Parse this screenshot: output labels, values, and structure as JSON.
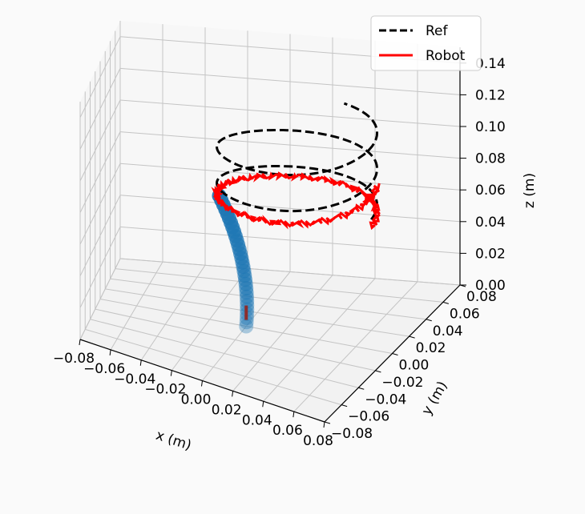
{
  "chart_data": {
    "type": "line",
    "xlabel": "x (m)",
    "ylabel": "y (m)",
    "zlabel": "z (m)",
    "xlim": [
      -0.08,
      0.08
    ],
    "ylim": [
      -0.08,
      0.08
    ],
    "zlim": [
      0.0,
      0.15
    ],
    "x_ticks": [
      "−0.08",
      "−0.06",
      "−0.04",
      "−0.02",
      "0.00",
      "0.02",
      "0.04",
      "0.06",
      "0.08"
    ],
    "y_ticks": [
      "−0.08",
      "−0.06",
      "−0.04",
      "−0.02",
      "0.00",
      "0.02",
      "0.04",
      "0.06",
      "0.08"
    ],
    "z_ticks": [
      "0.00",
      "0.02",
      "0.04",
      "0.06",
      "0.08",
      "0.10",
      "0.12",
      "0.14"
    ],
    "grid": true,
    "legend": {
      "placement": "top-right",
      "entries": [
        "Ref",
        "Robot"
      ]
    },
    "series": [
      {
        "name": "Ref",
        "style": "dashed",
        "color": "#000000",
        "description": "helix, radius 0.04 m centered at (0.02, 0.02), z from 0.07 to 0.12",
        "center": [
          0.02,
          0.02
        ],
        "radius": 0.04,
        "z_range": [
          0.07,
          0.12
        ],
        "turns": 2.2
      },
      {
        "name": "Robot",
        "style": "solid",
        "color": "#ff0000",
        "center": [
          0.02,
          0.02
        ],
        "radius": 0.04,
        "z_range": [
          0.065,
          0.085
        ],
        "turns": 1.05
      }
    ],
    "robot_body": {
      "color": "#1f77b4",
      "tip_color": "#8c2d2d",
      "base": [
        0.0,
        0.0,
        0.0
      ],
      "tip": [
        -0.02,
        0.02,
        0.07
      ]
    }
  }
}
